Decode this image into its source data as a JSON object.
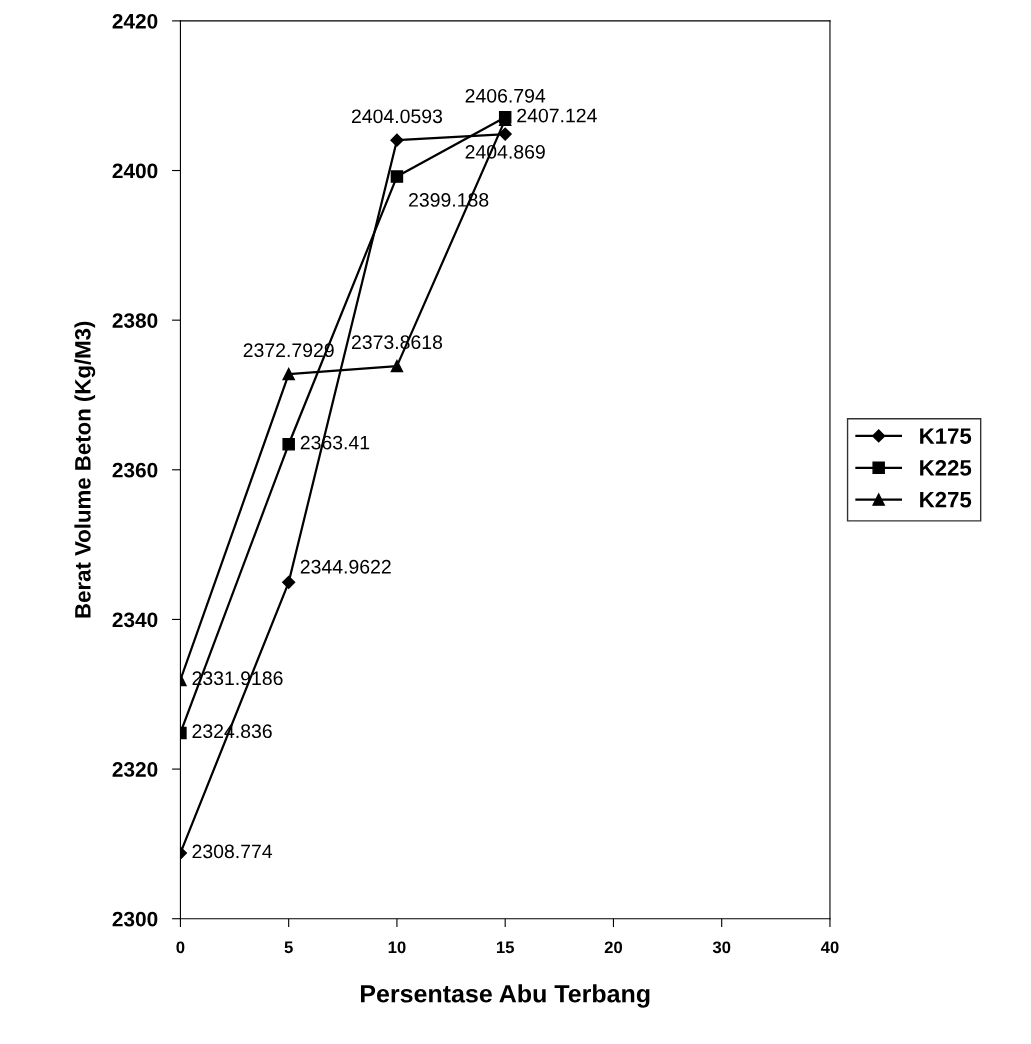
{
  "chart_data": {
    "type": "line",
    "xlabel": "Persentase Abu Terbang",
    "ylabel": "Berat Volume Beton (Kg/M3)",
    "categories": [
      "0",
      "5",
      "10",
      "15",
      "20",
      "30",
      "40"
    ],
    "series": [
      {
        "name": "K175",
        "color": "#000000",
        "marker": "diamond",
        "values": [
          2308.774,
          2344.9622,
          2404.0593,
          2404.869,
          null,
          null,
          null
        ]
      },
      {
        "name": "K225",
        "color": "#000000",
        "marker": "square",
        "values": [
          2324.836,
          2363.41,
          2399.188,
          2407.124,
          null,
          null,
          null
        ]
      },
      {
        "name": "K275",
        "color": "#000000",
        "marker": "triangle",
        "values": [
          2331.9186,
          2372.7929,
          2373.8618,
          2406.794,
          null,
          null,
          null
        ]
      }
    ],
    "ylim": [
      2300,
      2420
    ],
    "yticks": [
      2300,
      2320,
      2340,
      2360,
      2380,
      2400,
      2420
    ],
    "data_labels": true,
    "legend": "right",
    "grid": false,
    "line_style": "solid"
  }
}
